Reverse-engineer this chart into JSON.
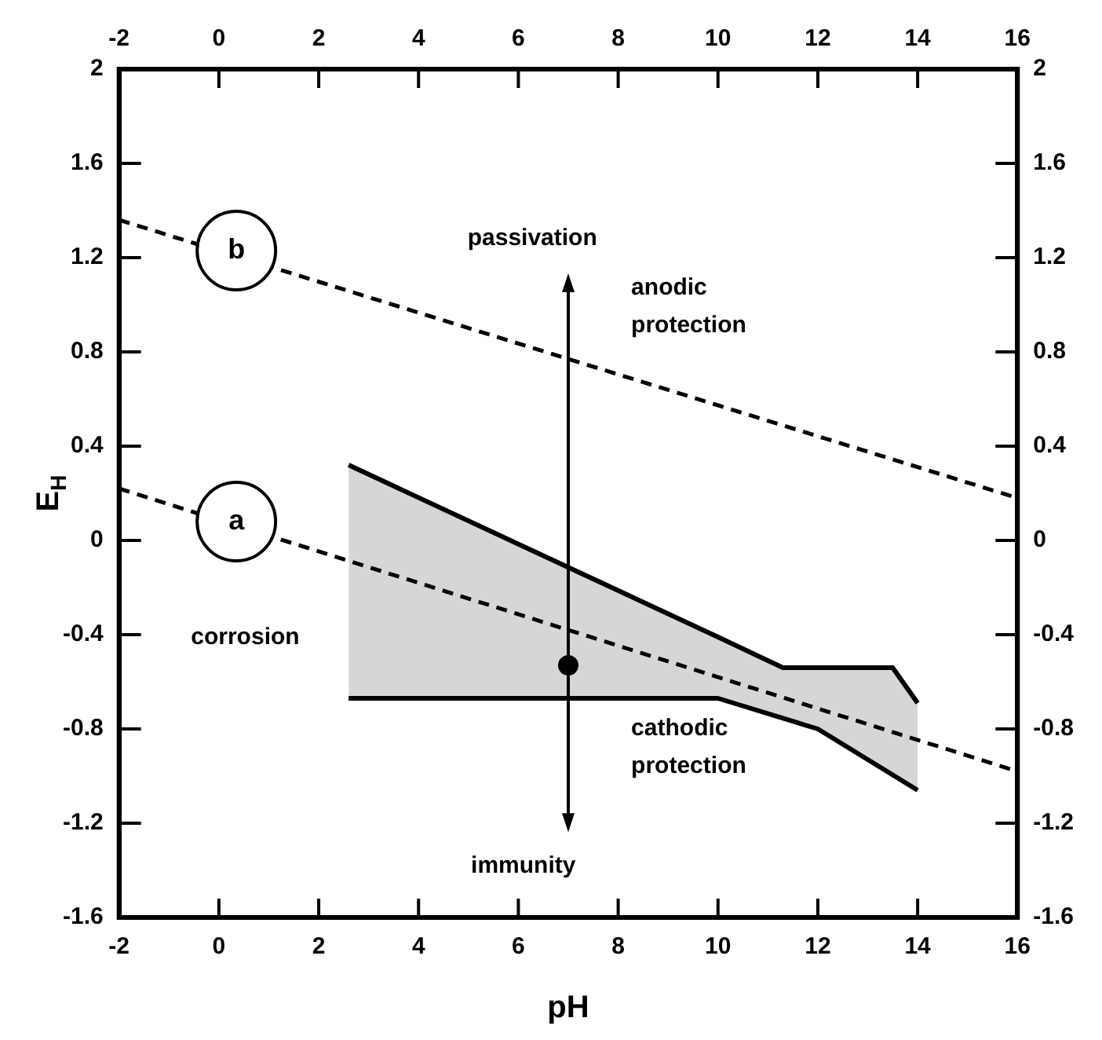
{
  "chart_data": {
    "type": "line",
    "xlabel": "pH",
    "ylabel": "E$_{H}$",
    "xlim": [
      -2,
      16
    ],
    "xticks": [
      -2,
      0,
      2,
      4,
      6,
      8,
      10,
      12,
      14,
      16
    ],
    "x2lim": [
      -2,
      16
    ],
    "x2ticks": [
      -2,
      0,
      2,
      4,
      6,
      8,
      10,
      12,
      14,
      16
    ],
    "ylim": [
      -1.6,
      2
    ],
    "yticks": [
      -1.6,
      -1.2,
      -0.8,
      -0.4,
      0,
      0.4,
      0.8,
      1.2,
      1.6,
      2
    ],
    "y2lim": [
      -1.6,
      2
    ],
    "y2ticks": [
      -1.6,
      -1.2,
      -0.8,
      -0.4,
      0,
      0.4,
      0.8,
      1.2,
      1.6,
      2
    ],
    "grid": false,
    "legend": false,
    "series": [
      {
        "color": "#000000",
        "line_style": "dashed",
        "marker": "none",
        "x": [
          -2,
          16
        ],
        "values": [
          1.36,
          0.18
        ]
      },
      {
        "color": "#000000",
        "line_style": "dashed",
        "marker": "none",
        "x": [
          -2,
          16
        ],
        "values": [
          0.22,
          -0.98
        ]
      },
      {
        "color": "#000000",
        "line_style": "solid",
        "marker": "none",
        "x": [
          2.6,
          10,
          11.3,
          12,
          13.5,
          14
        ],
        "values": [
          0.32,
          -0.41,
          -0.54,
          -0.54,
          -0.54,
          -0.69
        ],
        "lower": [
          -0.67,
          -0.67,
          -0.75,
          -0.8,
          -0.99,
          -1.06
        ],
        "upper": [
          0.32,
          -0.41,
          -0.54,
          -0.54,
          -0.54,
          -0.69
        ]
      },
      {
        "color": "#000000",
        "line_style": "solid",
        "marker": "none",
        "x": [
          2.6,
          10,
          12,
          14
        ],
        "values": [
          -0.67,
          -0.67,
          -0.8,
          -1.06
        ]
      },
      {
        "type": "scatter",
        "color": "#000000",
        "marker": "circle",
        "x": [
          7
        ],
        "values": [
          -0.53
        ]
      }
    ],
    "annotations": [
      "passivation",
      "anodic\nprotection",
      "corrosion",
      "cathodic\nprotection",
      "immunity",
      {
        "text": "b",
        "x": 0.35,
        "y": 1.23
      },
      {
        "text": "a",
        "x": 0.35,
        "y": 0.08
      }
    ]
  }
}
